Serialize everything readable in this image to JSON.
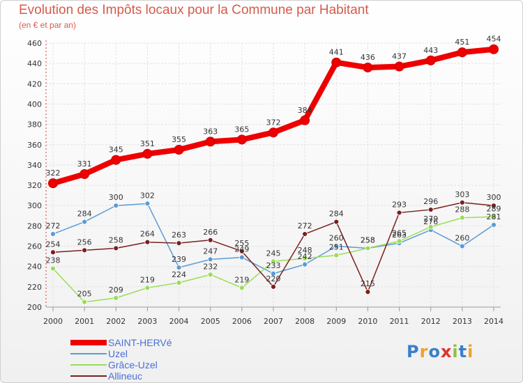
{
  "chart_data": {
    "type": "line",
    "title": "Evolution des Impôts locaux pour la Commune par Habitant",
    "subtitle": "(en € et par an)",
    "xlabel": "",
    "ylabel": "",
    "categories": [
      "2000",
      "2001",
      "2002",
      "2003",
      "2004",
      "2005",
      "2006",
      "2007",
      "2008",
      "2009",
      "2010",
      "2011",
      "2012",
      "2013",
      "2014"
    ],
    "ylim": [
      200,
      460
    ],
    "yticks": [
      200,
      220,
      240,
      260,
      280,
      300,
      320,
      340,
      360,
      380,
      400,
      420,
      440,
      460
    ],
    "grid": true,
    "legend_position": "bottom-left",
    "series": [
      {
        "name": "SAINT-HERVé",
        "color": "#ee0000",
        "values": [
          322,
          331,
          345,
          351,
          355,
          363,
          365,
          372,
          384,
          441,
          436,
          437,
          443,
          451,
          454
        ]
      },
      {
        "name": "Uzel",
        "color": "#5b9bd5",
        "values": [
          272,
          284,
          300,
          302,
          239,
          247,
          249,
          233,
          242,
          260,
          258,
          263,
          276,
          260,
          281
        ]
      },
      {
        "name": "Grâce-Uzel",
        "color": "#99dd55",
        "values": [
          238,
          205,
          209,
          219,
          224,
          232,
          219,
          245,
          248,
          251,
          258,
          265,
          279,
          288,
          289
        ]
      },
      {
        "name": "Allineuc",
        "color": "#7a1f1f",
        "values": [
          254,
          256,
          258,
          264,
          263,
          266,
          255,
          220,
          272,
          284,
          215,
          293,
          296,
          303,
          300
        ]
      }
    ]
  },
  "brand": {
    "text": "Proxiti",
    "letters": [
      "P",
      "r",
      "o",
      "x",
      "i",
      "t",
      "i"
    ],
    "colors": [
      "#3a7fc9",
      "#f0a030",
      "#3a7fc9",
      "#e03030",
      "#90c040",
      "#3a7fc9",
      "#f0a030"
    ]
  }
}
